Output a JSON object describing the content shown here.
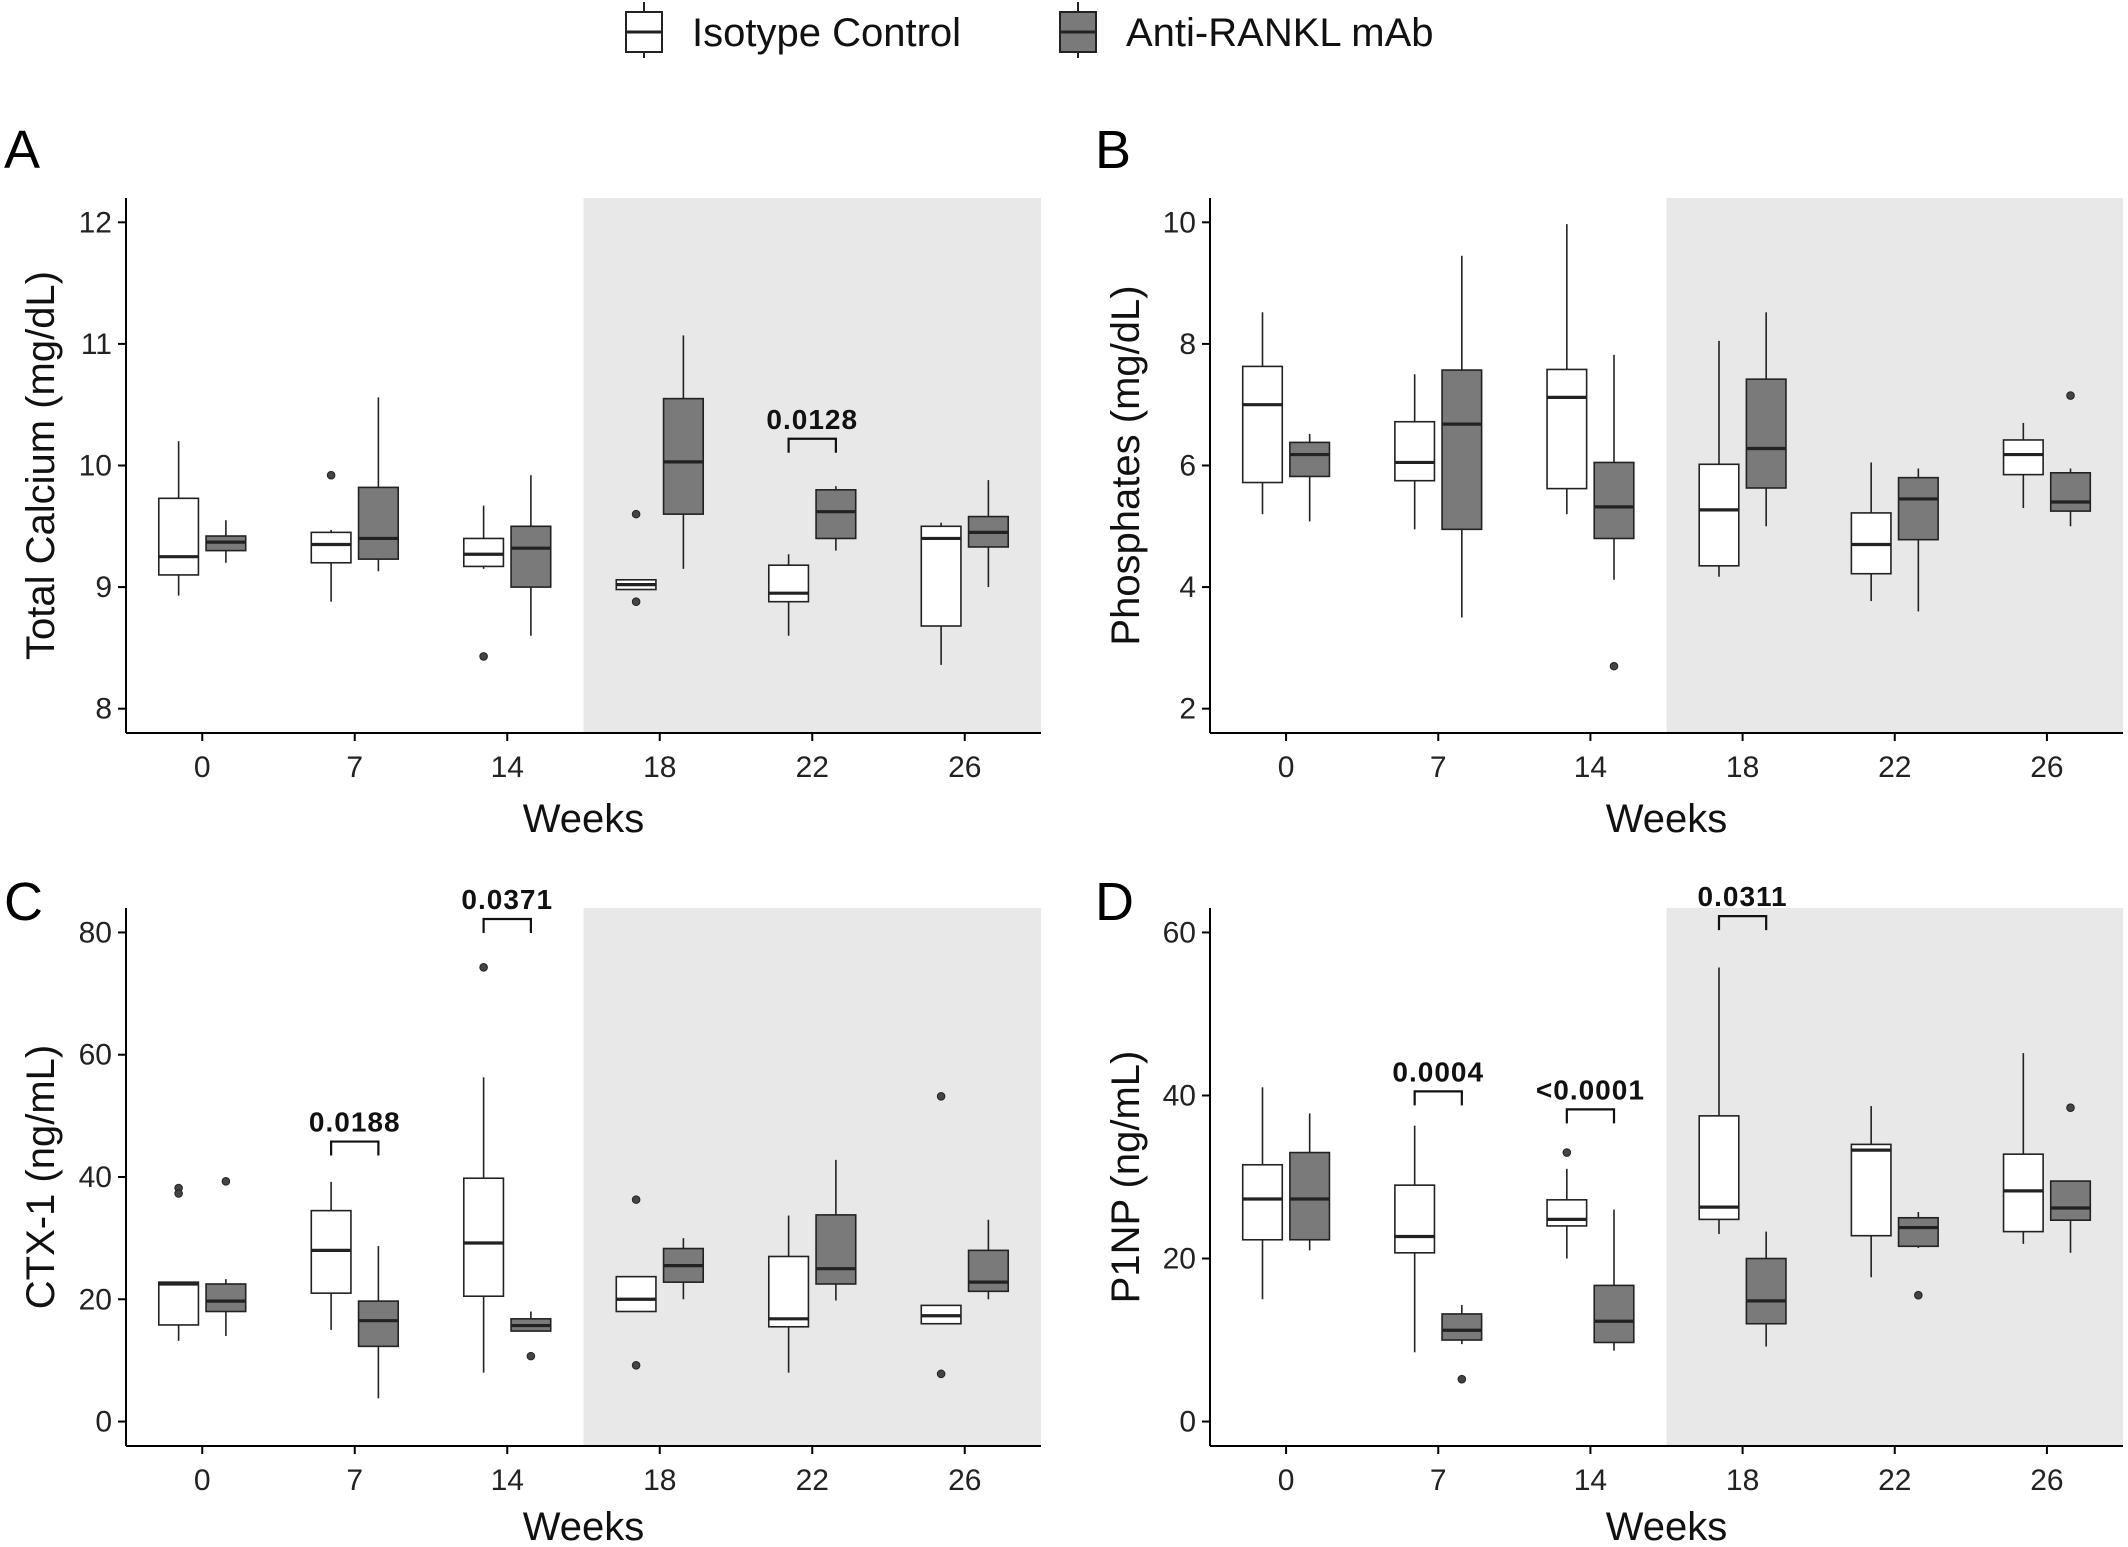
{
  "legend": {
    "items": [
      {
        "label": "Isotype Control",
        "fill": "#ffffff"
      },
      {
        "label": "Anti-RANKL mAb",
        "fill": "#7a7a7a"
      }
    ]
  },
  "colors": {
    "control_fill": "#ffffff",
    "treated_fill": "#7a7a7a",
    "shade": "#e8e8e8",
    "stroke": "#222222"
  },
  "chart_data": [
    {
      "type": "box",
      "panel": "A",
      "xlabel": "Weeks",
      "ylabel": "Total Calcium (mg/dL)",
      "categories": [
        "0",
        "7",
        "14",
        "18",
        "22",
        "26"
      ],
      "ylim": [
        7.8,
        12.2
      ],
      "yticks": [
        8,
        9,
        10,
        11,
        12
      ],
      "shaded_from_category": "18",
      "series": [
        {
          "name": "Isotype Control",
          "boxes": [
            {
              "min": 8.93,
              "q1": 9.1,
              "median": 9.25,
              "q3": 9.73,
              "max": 10.2,
              "outliers": []
            },
            {
              "min": 8.88,
              "q1": 9.2,
              "median": 9.35,
              "q3": 9.45,
              "max": 9.47,
              "outliers": [
                9.92
              ]
            },
            {
              "min": 9.15,
              "q1": 9.17,
              "median": 9.27,
              "q3": 9.4,
              "max": 9.67,
              "outliers": [
                8.43
              ]
            },
            {
              "min": 8.98,
              "q1": 8.98,
              "median": 9.02,
              "q3": 9.06,
              "max": 9.06,
              "outliers": [
                9.6,
                8.88
              ]
            },
            {
              "min": 8.6,
              "q1": 8.88,
              "median": 8.95,
              "q3": 9.18,
              "max": 9.27,
              "outliers": []
            },
            {
              "min": 8.36,
              "q1": 8.68,
              "median": 9.4,
              "q3": 9.5,
              "max": 9.53,
              "outliers": []
            }
          ]
        },
        {
          "name": "Anti-RANKL mAb",
          "boxes": [
            {
              "min": 9.2,
              "q1": 9.3,
              "median": 9.37,
              "q3": 9.42,
              "max": 9.55,
              "outliers": []
            },
            {
              "min": 9.13,
              "q1": 9.23,
              "median": 9.4,
              "q3": 9.82,
              "max": 10.56,
              "outliers": []
            },
            {
              "min": 8.6,
              "q1": 9.0,
              "median": 9.32,
              "q3": 9.5,
              "max": 9.92,
              "outliers": []
            },
            {
              "min": 9.15,
              "q1": 9.6,
              "median": 10.03,
              "q3": 10.55,
              "max": 11.07,
              "outliers": []
            },
            {
              "min": 9.3,
              "q1": 9.4,
              "median": 9.62,
              "q3": 9.8,
              "max": 9.83,
              "outliers": []
            },
            {
              "min": 9.0,
              "q1": 9.33,
              "median": 9.45,
              "q3": 9.58,
              "max": 9.88,
              "outliers": []
            }
          ]
        }
      ],
      "annotations": [
        {
          "category_index": 4,
          "text": "0.0128",
          "y": 10.22
        }
      ]
    },
    {
      "type": "box",
      "panel": "B",
      "xlabel": "Weeks",
      "ylabel": "Phosphates (mg/dL)",
      "categories": [
        "0",
        "7",
        "14",
        "18",
        "22",
        "26"
      ],
      "ylim": [
        1.6,
        10.4
      ],
      "yticks": [
        2,
        4,
        6,
        8,
        10
      ],
      "shaded_from_category": "18",
      "series": [
        {
          "name": "Isotype Control",
          "boxes": [
            {
              "min": 5.2,
              "q1": 5.72,
              "median": 7.0,
              "q3": 7.63,
              "max": 8.52,
              "outliers": []
            },
            {
              "min": 4.95,
              "q1": 5.75,
              "median": 6.05,
              "q3": 6.72,
              "max": 7.5,
              "outliers": []
            },
            {
              "min": 5.2,
              "q1": 5.62,
              "median": 7.12,
              "q3": 7.58,
              "max": 9.97,
              "outliers": []
            },
            {
              "min": 4.17,
              "q1": 4.35,
              "median": 5.27,
              "q3": 6.02,
              "max": 8.05,
              "outliers": []
            },
            {
              "min": 3.77,
              "q1": 4.22,
              "median": 4.7,
              "q3": 5.22,
              "max": 6.05,
              "outliers": []
            },
            {
              "min": 5.3,
              "q1": 5.85,
              "median": 6.18,
              "q3": 6.42,
              "max": 6.7,
              "outliers": []
            }
          ]
        },
        {
          "name": "Anti-RANKL mAb",
          "boxes": [
            {
              "min": 5.08,
              "q1": 5.82,
              "median": 6.18,
              "q3": 6.38,
              "max": 6.52,
              "outliers": []
            },
            {
              "min": 3.5,
              "q1": 4.95,
              "median": 6.68,
              "q3": 7.57,
              "max": 9.45,
              "outliers": []
            },
            {
              "min": 4.12,
              "q1": 4.8,
              "median": 5.32,
              "q3": 6.05,
              "max": 7.82,
              "outliers": [
                2.7
              ]
            },
            {
              "min": 5.0,
              "q1": 5.63,
              "median": 6.28,
              "q3": 7.42,
              "max": 8.52,
              "outliers": []
            },
            {
              "min": 3.6,
              "q1": 4.78,
              "median": 5.45,
              "q3": 5.8,
              "max": 5.95,
              "outliers": []
            },
            {
              "min": 5.0,
              "q1": 5.25,
              "median": 5.4,
              "q3": 5.88,
              "max": 5.95,
              "outliers": [
                7.15
              ]
            }
          ]
        }
      ],
      "annotations": []
    },
    {
      "type": "box",
      "panel": "C",
      "xlabel": "Weeks",
      "ylabel": "CTX-1 (ng/mL)",
      "categories": [
        "0",
        "7",
        "14",
        "18",
        "22",
        "26"
      ],
      "ylim": [
        -4,
        84
      ],
      "yticks": [
        0,
        20,
        40,
        60,
        80
      ],
      "shaded_from_category": "18",
      "series": [
        {
          "name": "Isotype Control",
          "boxes": [
            {
              "min": 13.2,
              "q1": 15.8,
              "median": 22.5,
              "q3": 22.8,
              "max": 22.8,
              "outliers": [
                38.2,
                37.3
              ]
            },
            {
              "min": 15.0,
              "q1": 21.0,
              "median": 28.0,
              "q3": 34.5,
              "max": 39.2,
              "outliers": []
            },
            {
              "min": 8.0,
              "q1": 20.5,
              "median": 29.2,
              "q3": 39.8,
              "max": 56.3,
              "outliers": [
                74.3
              ]
            },
            {
              "min": 18.0,
              "q1": 18.0,
              "median": 20.0,
              "q3": 23.7,
              "max": 23.7,
              "outliers": [
                36.3,
                9.2
              ]
            },
            {
              "min": 8.0,
              "q1": 15.5,
              "median": 16.8,
              "q3": 27.0,
              "max": 33.7,
              "outliers": []
            },
            {
              "min": 16.0,
              "q1": 16.0,
              "median": 17.3,
              "q3": 19.0,
              "max": 19.0,
              "outliers": [
                53.2,
                7.8
              ]
            }
          ]
        },
        {
          "name": "Anti-RANKL mAb",
          "boxes": [
            {
              "min": 14.0,
              "q1": 18.0,
              "median": 19.7,
              "q3": 22.5,
              "max": 23.3,
              "outliers": [
                39.3
              ]
            },
            {
              "min": 3.8,
              "q1": 12.3,
              "median": 16.5,
              "q3": 19.7,
              "max": 28.7,
              "outliers": []
            },
            {
              "min": 14.8,
              "q1": 14.8,
              "median": 15.7,
              "q3": 16.8,
              "max": 18.0,
              "outliers": [
                10.7
              ]
            },
            {
              "min": 20.0,
              "q1": 22.8,
              "median": 25.5,
              "q3": 28.3,
              "max": 30.0,
              "outliers": []
            },
            {
              "min": 19.8,
              "q1": 22.5,
              "median": 25.0,
              "q3": 33.8,
              "max": 42.8,
              "outliers": []
            },
            {
              "min": 20.0,
              "q1": 21.3,
              "median": 22.8,
              "q3": 28.0,
              "max": 33.0,
              "outliers": []
            }
          ]
        }
      ],
      "annotations": [
        {
          "category_index": 1,
          "text": "0.0188",
          "y": 45.8
        },
        {
          "category_index": 2,
          "text": "0.0371",
          "y": 82.2
        }
      ]
    },
    {
      "type": "box",
      "panel": "D",
      "xlabel": "Weeks",
      "ylabel": "P1NP (ng/mL)",
      "categories": [
        "0",
        "7",
        "14",
        "18",
        "22",
        "26"
      ],
      "ylim": [
        -3,
        63
      ],
      "yticks": [
        0,
        20,
        40,
        60
      ],
      "shaded_from_category": "18",
      "series": [
        {
          "name": "Isotype Control",
          "boxes": [
            {
              "min": 15.0,
              "q1": 22.3,
              "median": 27.3,
              "q3": 31.5,
              "max": 41.0,
              "outliers": []
            },
            {
              "min": 8.5,
              "q1": 20.7,
              "median": 22.7,
              "q3": 29.0,
              "max": 36.3,
              "outliers": []
            },
            {
              "min": 20.0,
              "q1": 24.0,
              "median": 24.8,
              "q3": 27.2,
              "max": 31.0,
              "outliers": [
                33.0
              ]
            },
            {
              "min": 23.0,
              "q1": 24.8,
              "median": 26.3,
              "q3": 37.5,
              "max": 55.7,
              "outliers": []
            },
            {
              "min": 17.7,
              "q1": 22.8,
              "median": 33.3,
              "q3": 34.0,
              "max": 38.7,
              "outliers": []
            },
            {
              "min": 21.8,
              "q1": 23.3,
              "median": 28.3,
              "q3": 32.8,
              "max": 45.2,
              "outliers": []
            }
          ]
        },
        {
          "name": "Anti-RANKL mAb",
          "boxes": [
            {
              "min": 21.0,
              "q1": 22.3,
              "median": 27.3,
              "q3": 33.0,
              "max": 37.8,
              "outliers": []
            },
            {
              "min": 9.5,
              "q1": 10.0,
              "median": 11.2,
              "q3": 13.2,
              "max": 14.3,
              "outliers": [
                5.2
              ]
            },
            {
              "min": 8.7,
              "q1": 9.7,
              "median": 12.3,
              "q3": 16.7,
              "max": 26.0,
              "outliers": []
            },
            {
              "min": 9.2,
              "q1": 12.0,
              "median": 14.8,
              "q3": 20.0,
              "max": 23.3,
              "outliers": []
            },
            {
              "min": 21.3,
              "q1": 21.5,
              "median": 23.8,
              "q3": 25.0,
              "max": 25.7,
              "outliers": [
                15.5
              ]
            },
            {
              "min": 20.7,
              "q1": 24.7,
              "median": 26.2,
              "q3": 29.5,
              "max": 29.5,
              "outliers": [
                38.5
              ]
            }
          ]
        }
      ],
      "annotations": [
        {
          "category_index": 1,
          "text": "0.0004",
          "y": 40.5
        },
        {
          "category_index": 2,
          "text": "<0.0001",
          "y": 38.3
        },
        {
          "category_index": 3,
          "text": "0.0311",
          "y": 62.0
        }
      ]
    }
  ]
}
